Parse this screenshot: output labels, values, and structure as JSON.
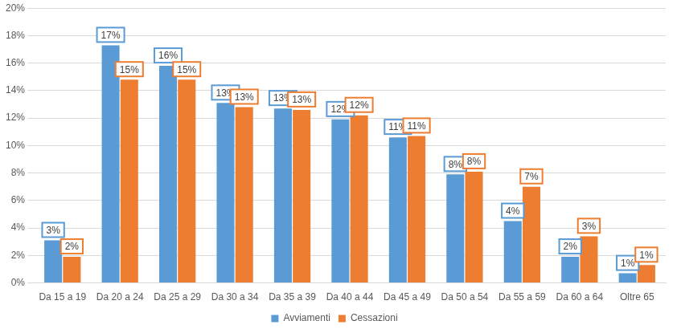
{
  "chart_data": {
    "type": "bar",
    "categories": [
      "Da 15 a 19",
      "Da 20 a 24",
      "Da 25 a 29",
      "Da 30 a 34",
      "Da 35 a 39",
      "Da 40 a 44",
      "Da 45 a 49",
      "Da 50 a 54",
      "Da 55 a 59",
      "Da 60 a 64",
      "Oltre 65"
    ],
    "series": [
      {
        "name": "Avviamenti",
        "color": "#5b9bd5",
        "values": [
          3.1,
          17.3,
          15.8,
          13.1,
          12.7,
          11.9,
          10.6,
          7.9,
          4.5,
          1.9,
          0.7
        ],
        "value_labels": [
          "3%",
          "17%",
          "16%",
          "13%",
          "13%",
          "12%",
          "11%",
          "8%",
          "4%",
          "2%",
          "1%"
        ]
      },
      {
        "name": "Cessazioni",
        "color": "#ed7d31",
        "values": [
          1.9,
          14.8,
          14.8,
          12.8,
          12.6,
          12.2,
          10.7,
          8.1,
          7.0,
          3.4,
          1.3
        ],
        "value_labels": [
          "2%",
          "15%",
          "15%",
          "13%",
          "13%",
          "12%",
          "11%",
          "8%",
          "7%",
          "3%",
          "1%"
        ]
      }
    ],
    "ylim": [
      0,
      20
    ],
    "yticks": [
      {
        "value": 0,
        "label": "0%"
      },
      {
        "value": 2,
        "label": "2%"
      },
      {
        "value": 4,
        "label": "4%"
      },
      {
        "value": 6,
        "label": "6%"
      },
      {
        "value": 8,
        "label": "8%"
      },
      {
        "value": 10,
        "label": "10%"
      },
      {
        "value": 12,
        "label": "12%"
      },
      {
        "value": 14,
        "label": "14%"
      },
      {
        "value": 16,
        "label": "16%"
      },
      {
        "value": 18,
        "label": "18%"
      },
      {
        "value": 20,
        "label": "20%"
      }
    ],
    "grid": true,
    "legend": "bottom",
    "data_labels": true
  }
}
